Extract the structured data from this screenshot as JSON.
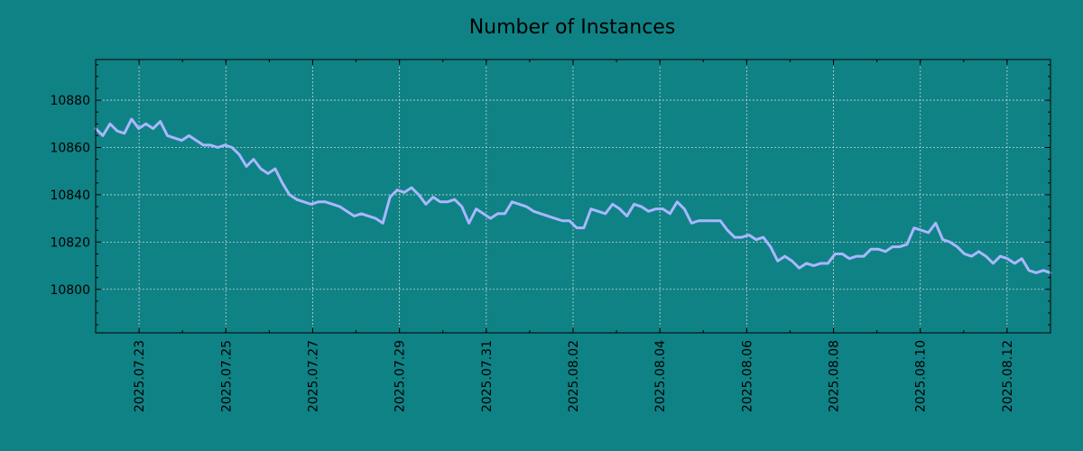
{
  "chart_data": {
    "type": "line",
    "title": "Number of Instances",
    "xlabel": "",
    "ylabel": "",
    "x_start": "2025-07-22",
    "x_end": "2025-08-13",
    "xlim": [
      "2025-07-22",
      "2025-08-13"
    ],
    "ylim": [
      10781.6,
      10897.2
    ],
    "yticks": [
      10800,
      10820,
      10840,
      10860,
      10880
    ],
    "xticks": [
      "2025.07.23",
      "2025.07.25",
      "2025.07.27",
      "2025.07.29",
      "2025.07.31",
      "2025.08.02",
      "2025.08.04",
      "2025.08.06",
      "2025.08.08",
      "2025.08.10",
      "2025.08.12"
    ],
    "grid": true,
    "colors": {
      "background": "#0f8285",
      "line": "#a9b7ff"
    },
    "series": [
      {
        "values": [
          10868,
          10865,
          10870,
          10867,
          10866,
          10872,
          10868,
          10870,
          10868,
          10871,
          10865,
          10864,
          10863,
          10865,
          10863,
          10861,
          10861,
          10860,
          10861,
          10860,
          10857,
          10852,
          10855,
          10851,
          10849,
          10851,
          10845,
          10840,
          10838,
          10837,
          10836,
          10837,
          10837,
          10836,
          10835,
          10833,
          10831,
          10832,
          10831,
          10830,
          10828,
          10839,
          10842,
          10841,
          10843,
          10840,
          10836,
          10839,
          10837,
          10837,
          10838,
          10835,
          10828,
          10834,
          10832,
          10830,
          10832,
          10832,
          10837,
          10836,
          10835,
          10833,
          10832,
          10831,
          10830,
          10829,
          10829,
          10826,
          10826,
          10834,
          10833,
          10832,
          10836,
          10834,
          10831,
          10836,
          10835,
          10833,
          10834,
          10834,
          10832,
          10837,
          10834,
          10828,
          10829,
          10829,
          10829,
          10829,
          10825,
          10822,
          10822,
          10823,
          10821,
          10822,
          10818,
          10812,
          10814,
          10812,
          10809,
          10811,
          10810,
          10811,
          10811,
          10815,
          10815,
          10813,
          10814,
          10814,
          10817,
          10817,
          10816,
          10818,
          10818,
          10819,
          10826,
          10825,
          10824,
          10828,
          10821,
          10820,
          10818,
          10815,
          10814,
          10816,
          10814,
          10811,
          10814,
          10813,
          10811,
          10813,
          10808,
          10807,
          10808,
          10807
        ]
      }
    ]
  }
}
